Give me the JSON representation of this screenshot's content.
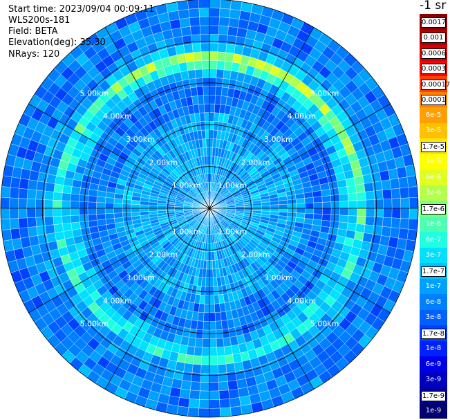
{
  "header": {
    "start_time": "Start time: 2023/09/04 00:09:11",
    "instrument": "WLS200s-181",
    "field": "Field: BETA",
    "elevation": "Elevation(deg): 35.30",
    "nrays": "NRays: 120"
  },
  "colorbar": {
    "unit": "-1 sr",
    "levels": [
      {
        "label": "0.0017",
        "color": "#8b0000",
        "boxed": true
      },
      {
        "label": "0.001",
        "color": "#b00000",
        "boxed": true
      },
      {
        "label": "0.0006",
        "color": "#d80000",
        "boxed": true
      },
      {
        "label": "0.0003",
        "color": "#ff0000",
        "boxed": true
      },
      {
        "label": "0.00017",
        "color": "#ff4000",
        "boxed": true
      },
      {
        "label": "0.0001",
        "color": "#ff8000",
        "boxed": true
      },
      {
        "label": "6e-5",
        "color": "#ffa000",
        "boxed": false
      },
      {
        "label": "3e-5",
        "color": "#ffc000",
        "boxed": false
      },
      {
        "label": "1.7e-5",
        "color": "#ffe600",
        "boxed": true
      },
      {
        "label": "1e-5",
        "color": "#ffff00",
        "boxed": false
      },
      {
        "label": "6e-6",
        "color": "#e0ff20",
        "boxed": false
      },
      {
        "label": "3e-6",
        "color": "#b4ff4a",
        "boxed": false
      },
      {
        "label": "1.7e-6",
        "color": "#7dff7d",
        "boxed": true
      },
      {
        "label": "1e-6",
        "color": "#4dffb0",
        "boxed": false
      },
      {
        "label": "6e-7",
        "color": "#20ffe0",
        "boxed": false
      },
      {
        "label": "3e-7",
        "color": "#00e0ff",
        "boxed": false
      },
      {
        "label": "1.7e-7",
        "color": "#00c0ff",
        "boxed": true
      },
      {
        "label": "1e-7",
        "color": "#00a0ff",
        "boxed": false
      },
      {
        "label": "6e-8",
        "color": "#0080ff",
        "boxed": false
      },
      {
        "label": "3e-8",
        "color": "#0060ff",
        "boxed": false
      },
      {
        "label": "1.7e-8",
        "color": "#0040ff",
        "boxed": true
      },
      {
        "label": "1e-8",
        "color": "#0020ff",
        "boxed": false
      },
      {
        "label": "6e-9",
        "color": "#0000e8",
        "boxed": false
      },
      {
        "label": "3e-9",
        "color": "#0000c0",
        "boxed": false
      },
      {
        "label": "1.7e-9",
        "color": "#000099",
        "boxed": true
      },
      {
        "label": "1e-9",
        "color": "#000070",
        "boxed": false
      }
    ]
  },
  "chart_data": {
    "type": "heatmap",
    "projection": "polar",
    "field": "BETA",
    "nrays": 120,
    "range_rings_km": [
      1,
      2,
      3,
      4,
      5
    ],
    "range_ring_labels": [
      "1.00km",
      "2.00km",
      "3.00km",
      "4.00km",
      "5.00km"
    ],
    "max_range_km": 5,
    "radials_deg": [
      0,
      30,
      60,
      90,
      120,
      150,
      180,
      210,
      240,
      270,
      300,
      330
    ],
    "colorscale": "log",
    "value_range": [
      1e-09,
      0.0017
    ],
    "features": [
      {
        "description": "enhanced backscatter ring",
        "range_km_min": 3.3,
        "range_km_max": 3.9,
        "level": "1.7e-6 to 1.7e-5"
      }
    ]
  }
}
